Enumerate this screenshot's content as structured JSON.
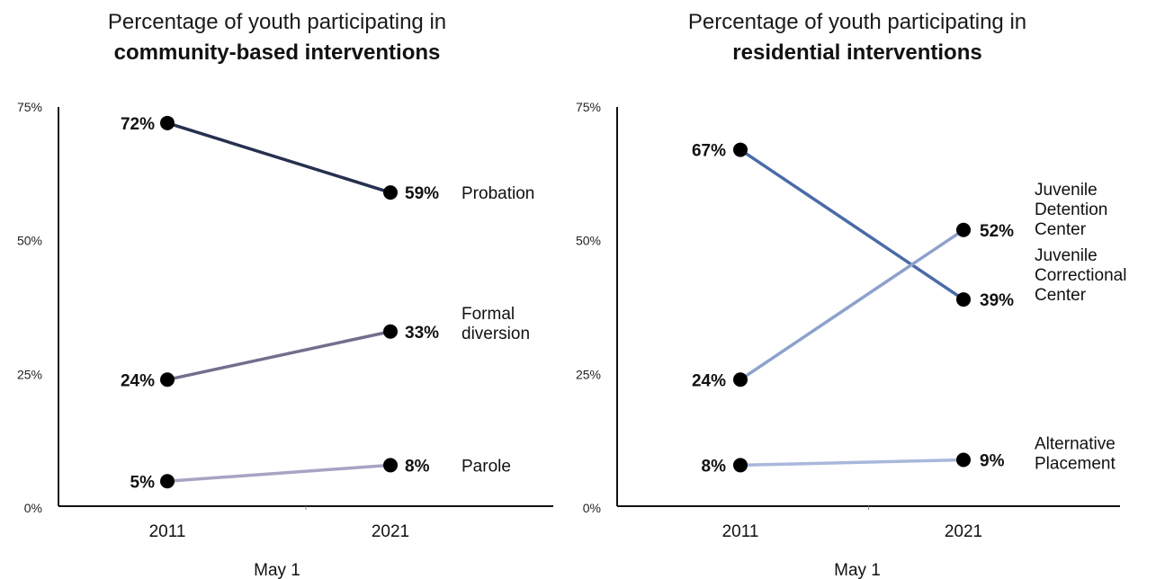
{
  "chart_data": [
    {
      "type": "line",
      "title_line1": "Percentage of youth participating in",
      "title_line2": "community-based interventions",
      "xlabel": "May 1",
      "ylabel": "",
      "categories": [
        "2011",
        "2021"
      ],
      "y_ticks": [
        "75%",
        "50%",
        "25%",
        "0%"
      ],
      "ylim": [
        0,
        75
      ],
      "series": [
        {
          "name": "Probation",
          "name_lines": [
            "Probation"
          ],
          "values": [
            72,
            59
          ],
          "labels": [
            "72%",
            "59%"
          ],
          "color": "#27304f"
        },
        {
          "name": "Formal diversion",
          "name_lines": [
            "Formal",
            "diversion"
          ],
          "values": [
            24,
            33
          ],
          "labels": [
            "24%",
            "33%"
          ],
          "color": "#736e8c"
        },
        {
          "name": "Parole",
          "name_lines": [
            "Parole"
          ],
          "values": [
            5,
            8
          ],
          "labels": [
            "5%",
            "8%"
          ],
          "color": "#a7a3c3"
        }
      ]
    },
    {
      "type": "line",
      "title_line1": "Percentage of youth participating in",
      "title_line2": "residential interventions",
      "xlabel": "May 1",
      "ylabel": "",
      "categories": [
        "2011",
        "2021"
      ],
      "y_ticks": [
        "75%",
        "50%",
        "25%",
        "0%"
      ],
      "ylim": [
        0,
        75
      ],
      "series": [
        {
          "name": "Juvenile Correctional Center",
          "name_lines": [
            "Juvenile",
            "Correctional",
            "Center"
          ],
          "values": [
            67,
            39
          ],
          "labels": [
            "67%",
            "39%"
          ],
          "color": "#4a6aa8"
        },
        {
          "name": "Juvenile Detention Center",
          "name_lines": [
            "Juvenile",
            "Detention",
            "Center"
          ],
          "values": [
            24,
            52
          ],
          "labels": [
            "24%",
            "52%"
          ],
          "color": "#8ea1cd"
        },
        {
          "name": "Alternative Placement",
          "name_lines": [
            "Alternative",
            "Placement"
          ],
          "values": [
            8,
            9
          ],
          "labels": [
            "8%",
            "9%"
          ],
          "color": "#a9b7dc"
        }
      ]
    }
  ]
}
